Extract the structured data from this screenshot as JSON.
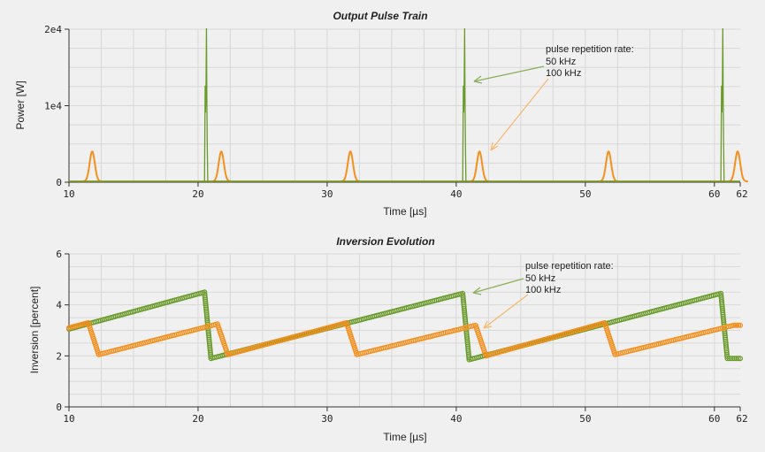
{
  "colors": {
    "series_50khz": "#6a9a2a",
    "series_100khz": "#f5901e",
    "arrow_50khz": "#8aae5a",
    "arrow_100khz": "#f7b86a",
    "grid": "#d8d8d8",
    "background": "#f0f0f0"
  },
  "chart_data": [
    {
      "type": "line",
      "title": "Output Pulse Train",
      "xlabel": "Time [µs]",
      "ylabel": "Power [W]",
      "xlim": [
        10,
        62
      ],
      "ylim": [
        0,
        20000
      ],
      "x_ticks": [
        10,
        20,
        30,
        40,
        50,
        60,
        62
      ],
      "x_tick_labels": [
        "10",
        "20",
        "30",
        "40",
        "50",
        "60",
        "62"
      ],
      "y_ticks": [
        0,
        10000,
        20000
      ],
      "y_tick_labels": [
        "0",
        "1e4",
        "2e4"
      ],
      "grid": true,
      "annotation": {
        "lines": [
          "pulse repetition rate:",
          "50 kHz",
          "100 kHz"
        ]
      },
      "series": [
        {
          "name": "50 kHz",
          "color_key": "series_50khz",
          "pulses": [
            {
              "center": 20.65,
              "peak": 20000
            },
            {
              "center": 40.65,
              "peak": 20000
            },
            {
              "center": 60.65,
              "peak": 20000
            }
          ]
        },
        {
          "name": "100 kHz",
          "color_key": "series_100khz",
          "pulses": [
            {
              "center": 11.8,
              "peak": 3900
            },
            {
              "center": 21.8,
              "peak": 3900
            },
            {
              "center": 31.8,
              "peak": 3900
            },
            {
              "center": 41.8,
              "peak": 3900
            },
            {
              "center": 51.8,
              "peak": 3900
            },
            {
              "center": 61.8,
              "peak": 3900
            }
          ]
        }
      ]
    },
    {
      "type": "scatter",
      "title": "Inversion Evolution",
      "xlabel": "Time [µs]",
      "ylabel": "Inversion [percent]",
      "xlim": [
        10,
        62
      ],
      "ylim": [
        0,
        6
      ],
      "x_ticks": [
        10,
        20,
        30,
        40,
        50,
        60,
        62
      ],
      "x_tick_labels": [
        "10",
        "20",
        "30",
        "40",
        "50",
        "60",
        "62"
      ],
      "y_ticks": [
        0,
        2,
        4,
        6
      ],
      "y_tick_labels": [
        "0",
        "2",
        "4",
        "6"
      ],
      "grid": true,
      "annotation": {
        "lines": [
          "pulse repetition rate:",
          "50 kHz",
          "100 kHz"
        ]
      },
      "series": [
        {
          "name": "50 kHz",
          "color_key": "series_50khz",
          "points": [
            [
              10.0,
              3.05
            ],
            [
              20.5,
              4.5
            ],
            [
              21.0,
              1.9
            ],
            [
              40.5,
              4.45
            ],
            [
              41.0,
              1.85
            ],
            [
              60.5,
              4.45
            ],
            [
              61.0,
              1.9
            ],
            [
              62.0,
              1.9
            ]
          ]
        },
        {
          "name": "100 kHz",
          "color_key": "series_100khz",
          "points": [
            [
              10.0,
              3.1
            ],
            [
              11.5,
              3.3
            ],
            [
              12.3,
              2.05
            ],
            [
              21.5,
              3.25
            ],
            [
              22.3,
              2.05
            ],
            [
              31.5,
              3.3
            ],
            [
              32.3,
              2.05
            ],
            [
              41.5,
              3.2
            ],
            [
              42.3,
              2.0
            ],
            [
              51.5,
              3.3
            ],
            [
              52.3,
              2.05
            ],
            [
              61.5,
              3.2
            ],
            [
              62.0,
              3.2
            ]
          ]
        }
      ]
    }
  ]
}
